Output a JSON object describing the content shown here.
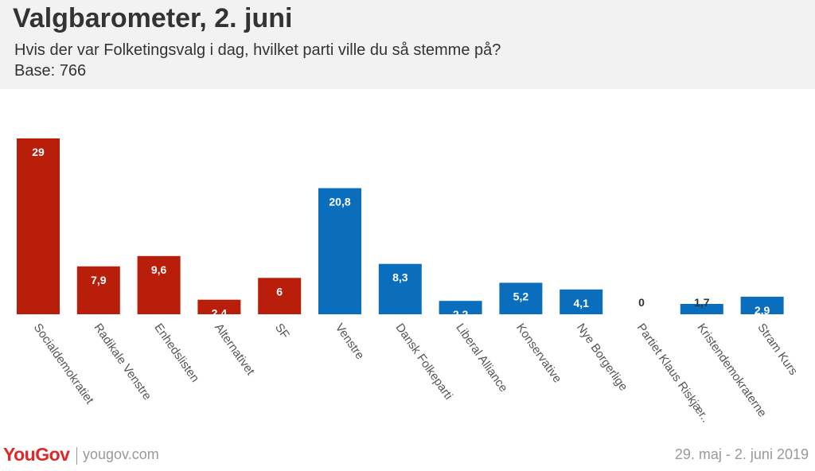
{
  "header": {
    "title": "Valgbarometer, 2. juni",
    "subtitle": "Hvis der var Folketingsvalg i dag, hvilket parti ville du så stemme på?",
    "base": "Base: 766"
  },
  "footer": {
    "brand": "YouGov",
    "site": "yougov.com",
    "date_range": "29. maj - 2. juni 2019"
  },
  "colors": {
    "red_bloc": "#b81e0a",
    "blue_bloc": "#0a6ebd"
  },
  "chart_data": {
    "type": "bar",
    "title": "Valgbarometer, 2. juni",
    "xlabel": "",
    "ylabel": "",
    "ylim": [
      0,
      29
    ],
    "categories": [
      "Socialdemokratiet",
      "Radikale Venstre",
      "Enhedslisten",
      "Alternativet",
      "SF",
      "Venstre",
      "Dansk Folkeparti",
      "Liberal Alliance",
      "Konservative",
      "Nye Borgerlige",
      "Partiet Klaus Riskjær..",
      "Kristendemokraterne",
      "Stram Kurs"
    ],
    "values": [
      29,
      7.9,
      9.6,
      2.4,
      6,
      20.8,
      8.3,
      2.2,
      5.2,
      4.1,
      0,
      1.7,
      2.9
    ],
    "value_labels": [
      "29",
      "7,9",
      "9,6",
      "2,4",
      "6",
      "20,8",
      "8,3",
      "2,2",
      "5,2",
      "4,1",
      "0",
      "1,7",
      "2,9"
    ],
    "bloc": [
      "red",
      "red",
      "red",
      "red",
      "red",
      "blue",
      "blue",
      "blue",
      "blue",
      "blue",
      "blue",
      "blue",
      "blue"
    ]
  }
}
